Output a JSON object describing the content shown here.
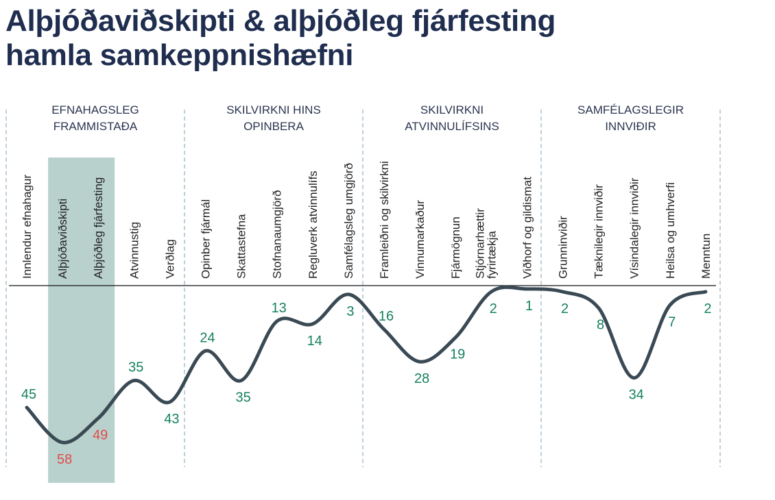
{
  "title": {
    "line1": "Alþjóðaviðskipti & alþjóðleg fjárfesting",
    "line2": "hamla samkeppnishæfni"
  },
  "colors": {
    "line": "#3a4a55",
    "good": "#15805f",
    "bad": "#e04b4b",
    "highlight": "#b9d1cc",
    "divider": "#7f9fb8",
    "title": "#1f2d4f"
  },
  "chart_data": {
    "type": "line",
    "note_scale": "rank (lower is better); the vertical axis is inverted",
    "ylim": [
      0,
      61
    ],
    "groups": [
      {
        "line1": "EFNAHAGSLEG",
        "line2": "FRAMMISTAÐA"
      },
      {
        "line1": "SKILVIRKNI HINS",
        "line2": "OPINBERA"
      },
      {
        "line1": "SKILVIRKNI",
        "line2": "ATVINNULÍFSINS"
      },
      {
        "line1": "SAMFÉLAGSLEGIR",
        "line2": "INNVIÐIR"
      }
    ],
    "categories": [
      "Innlendur efnahagur",
      "Alþjóðaviðskipti",
      "Alþjóðleg fjárfesting",
      "Atvinnustig",
      "Verðlag",
      "Opinber fjármál",
      "Skattastefna",
      "Stofnanaumgjörð",
      "Regluverk atvinnulífs",
      "Samfélagsleg umgjörð",
      "Framleiðni og skilvirkni",
      "Vinnumarkaður",
      "Fjármögnun",
      "Stjórnarhættir fyrirtækja",
      "Viðhorf og gildismat",
      "Grunninviðir",
      "Tæknilegir innviðir",
      "Vísindalegir innviðir",
      "Heilsa og umhverfi",
      "Menntun"
    ],
    "category_lines": [
      [
        "Innlendur efnahagur"
      ],
      [
        "Alþjóðaviðskipti"
      ],
      [
        "Alþjóðleg fjárfesting"
      ],
      [
        "Atvinnustig"
      ],
      [
        "Verðlag"
      ],
      [
        "Opinber fjármál"
      ],
      [
        "Skattastefna"
      ],
      [
        "Stofnanaumgjörð"
      ],
      [
        "Regluverk atvinnulífs"
      ],
      [
        "Samfélagsleg umgjörð"
      ],
      [
        "Framleiðni og skilvirkni"
      ],
      [
        "Vinnumarkaður"
      ],
      [
        "Fjármögnun"
      ],
      [
        "Stjórnarhættir",
        "fyrirtækja"
      ],
      [
        "Viðhorf og gildismat"
      ],
      [
        "Grunninviðir"
      ],
      [
        "Tæknilegir innviðir"
      ],
      [
        "Vísindalegir innviðir"
      ],
      [
        "Heilsa og umhverfi"
      ],
      [
        "Menntun"
      ]
    ],
    "values": [
      45,
      58,
      49,
      35,
      43,
      24,
      35,
      13,
      14,
      3,
      16,
      28,
      19,
      2,
      1,
      2,
      8,
      34,
      7,
      2
    ],
    "label_pos": [
      "above",
      "below",
      "below",
      "above",
      "below",
      "above",
      "below",
      "above",
      "below",
      "below",
      "above",
      "below",
      "below",
      "below",
      "below",
      "below",
      "below",
      "below",
      "below",
      "below"
    ],
    "highlighted": [
      "Alþjóðaviðskipti",
      "Alþjóðleg fjárfesting"
    ]
  }
}
